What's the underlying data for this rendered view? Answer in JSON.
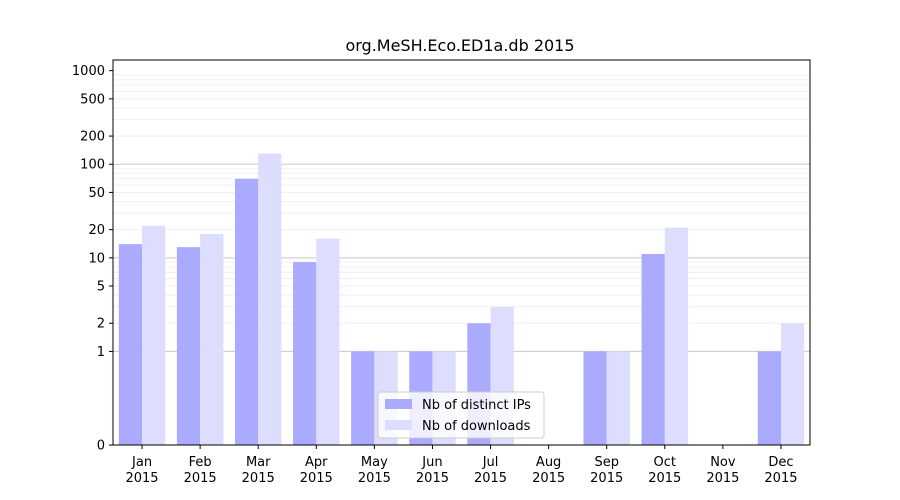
{
  "chart_data": {
    "type": "bar",
    "title": "org.MeSH.Eco.ED1a.db 2015",
    "xlabel": "",
    "ylabel": "",
    "y_scale": "symlog",
    "y_ticks": [
      0,
      1,
      2,
      5,
      10,
      20,
      50,
      100,
      200,
      500,
      1000
    ],
    "ylim": [
      0,
      1300
    ],
    "grid": true,
    "legend_position": "bottom-center",
    "categories": [
      [
        "Jan",
        "2015"
      ],
      [
        "Feb",
        "2015"
      ],
      [
        "Mar",
        "2015"
      ],
      [
        "Apr",
        "2015"
      ],
      [
        "May",
        "2015"
      ],
      [
        "Jun",
        "2015"
      ],
      [
        "Jul",
        "2015"
      ],
      [
        "Aug",
        "2015"
      ],
      [
        "Sep",
        "2015"
      ],
      [
        "Oct",
        "2015"
      ],
      [
        "Nov",
        "2015"
      ],
      [
        "Dec",
        "2015"
      ]
    ],
    "series": [
      {
        "name": "Nb of distinct IPs",
        "color": "#aaaaff",
        "values": [
          14,
          13,
          70,
          9,
          1,
          1,
          2,
          0,
          1,
          11,
          0,
          1
        ]
      },
      {
        "name": "Nb of downloads",
        "color": "#ddddff",
        "values": [
          22,
          18,
          130,
          16,
          1,
          1,
          3,
          0,
          1,
          21,
          0,
          2
        ]
      }
    ]
  }
}
